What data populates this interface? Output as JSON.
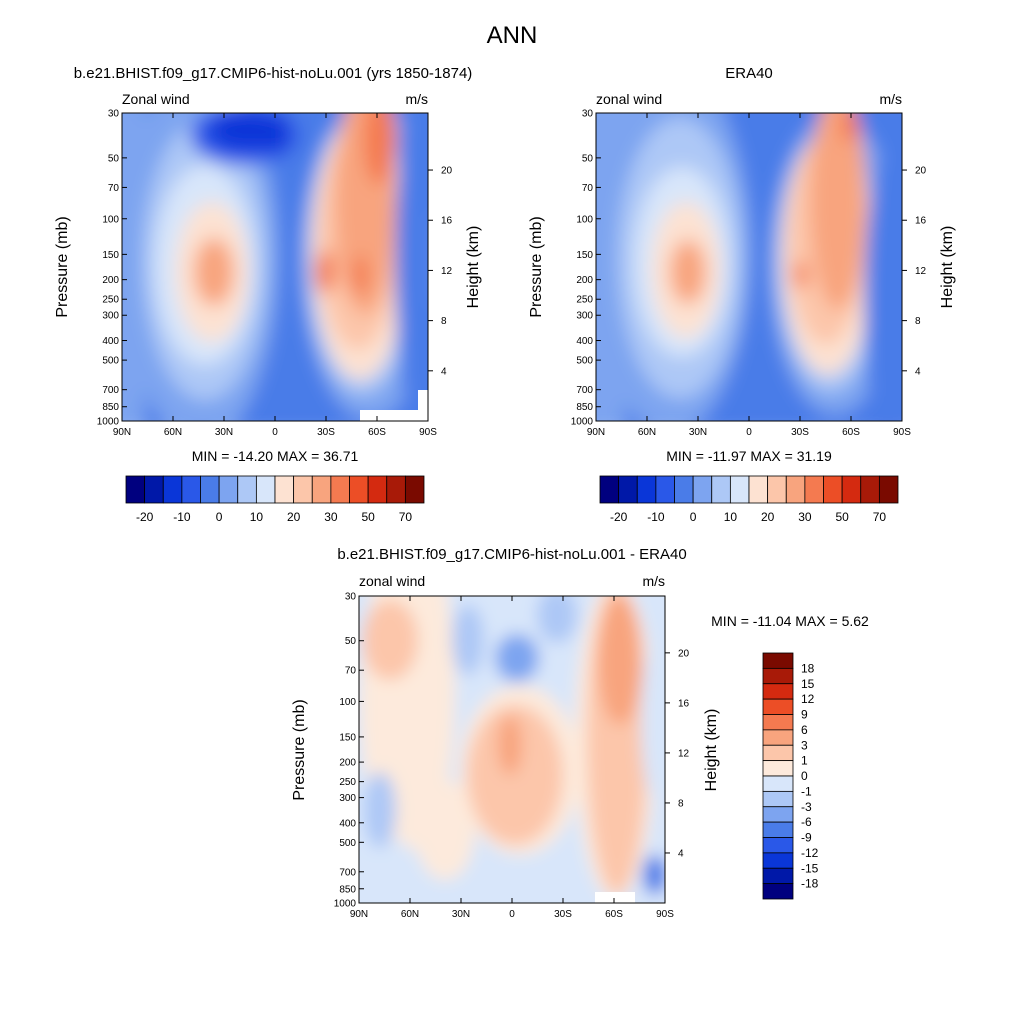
{
  "title": "ANN",
  "chart_data": [
    {
      "type": "heatmap",
      "title": "b.e21.BHIST.f09_g17.CMIP6-hist-noLu.001 (yrs 1850-1874)",
      "left_label": "Zonal wind",
      "units": "m/s",
      "ylabel": "Pressure (mb)",
      "ylabel_right": "Height (km)",
      "x_ticks": [
        "90N",
        "60N",
        "30N",
        "0",
        "30S",
        "60S",
        "90S"
      ],
      "y_ticks": [
        "30",
        "50",
        "70",
        "100",
        "150",
        "200",
        "250",
        "300",
        "400",
        "500",
        "700",
        "850",
        "1000"
      ],
      "y_ticks_right": [
        "4",
        "8",
        "12",
        "16",
        "20"
      ],
      "xlim": [
        90,
        -90
      ],
      "ylim_pressure": [
        1000,
        30
      ],
      "min_max": "MIN = -14.20  MAX =  36.71",
      "colorbar_labels": [
        "-20",
        "-10",
        "0",
        "10",
        "20",
        "30",
        "50",
        "70"
      ]
    },
    {
      "type": "heatmap",
      "title": "ERA40",
      "left_label": "zonal wind",
      "units": "m/s",
      "ylabel": "Pressure (mb)",
      "ylabel_right": "Height (km)",
      "x_ticks": [
        "90N",
        "60N",
        "30N",
        "0",
        "30S",
        "60S",
        "90S"
      ],
      "y_ticks": [
        "30",
        "50",
        "70",
        "100",
        "150",
        "200",
        "250",
        "300",
        "400",
        "500",
        "700",
        "850",
        "1000"
      ],
      "y_ticks_right": [
        "4",
        "8",
        "12",
        "16",
        "20"
      ],
      "xlim": [
        90,
        -90
      ],
      "ylim_pressure": [
        1000,
        30
      ],
      "min_max": "MIN = -11.97  MAX =  31.19",
      "colorbar_labels": [
        "-20",
        "-10",
        "0",
        "10",
        "20",
        "30",
        "50",
        "70"
      ]
    },
    {
      "type": "heatmap",
      "title": "b.e21.BHIST.f09_g17.CMIP6-hist-noLu.001 - ERA40",
      "left_label": "zonal wind",
      "units": "m/s",
      "ylabel": "Pressure (mb)",
      "ylabel_right": "Height (km)",
      "x_ticks": [
        "90N",
        "60N",
        "30N",
        "0",
        "30S",
        "60S",
        "90S"
      ],
      "y_ticks": [
        "30",
        "50",
        "70",
        "100",
        "150",
        "200",
        "250",
        "300",
        "400",
        "500",
        "700",
        "850",
        "1000"
      ],
      "y_ticks_right": [
        "4",
        "8",
        "12",
        "16",
        "20"
      ],
      "xlim": [
        90,
        -90
      ],
      "ylim_pressure": [
        1000,
        30
      ],
      "min_max": "MIN = -11.04  MAX =   5.62",
      "colorbar_labels": [
        "18",
        "15",
        "12",
        "9",
        "6",
        "3",
        "1",
        "0",
        "-1",
        "-3",
        "-6",
        "-9",
        "-12",
        "-15",
        "-18"
      ]
    }
  ],
  "palettes": {
    "full": [
      "#00007f",
      "#0018a8",
      "#0a36d8",
      "#2a58e8",
      "#4a7ce8",
      "#7da4f0",
      "#adc8f6",
      "#d8e6fa",
      "#fde2d2",
      "#fcc6aa",
      "#f8a47e",
      "#f47a50",
      "#ec4e26",
      "#d42a10",
      "#a81a08",
      "#7a0a00"
    ],
    "diff": [
      "#00007f",
      "#0018a8",
      "#0a36d8",
      "#2a58e8",
      "#4a7ce8",
      "#7da4f0",
      "#adc8f6",
      "#d8e6fa",
      "#fdeadc",
      "#fcc6aa",
      "#f8a47e",
      "#f47a50",
      "#ec4e26",
      "#d42a10",
      "#a81a08",
      "#7a0a00"
    ]
  }
}
